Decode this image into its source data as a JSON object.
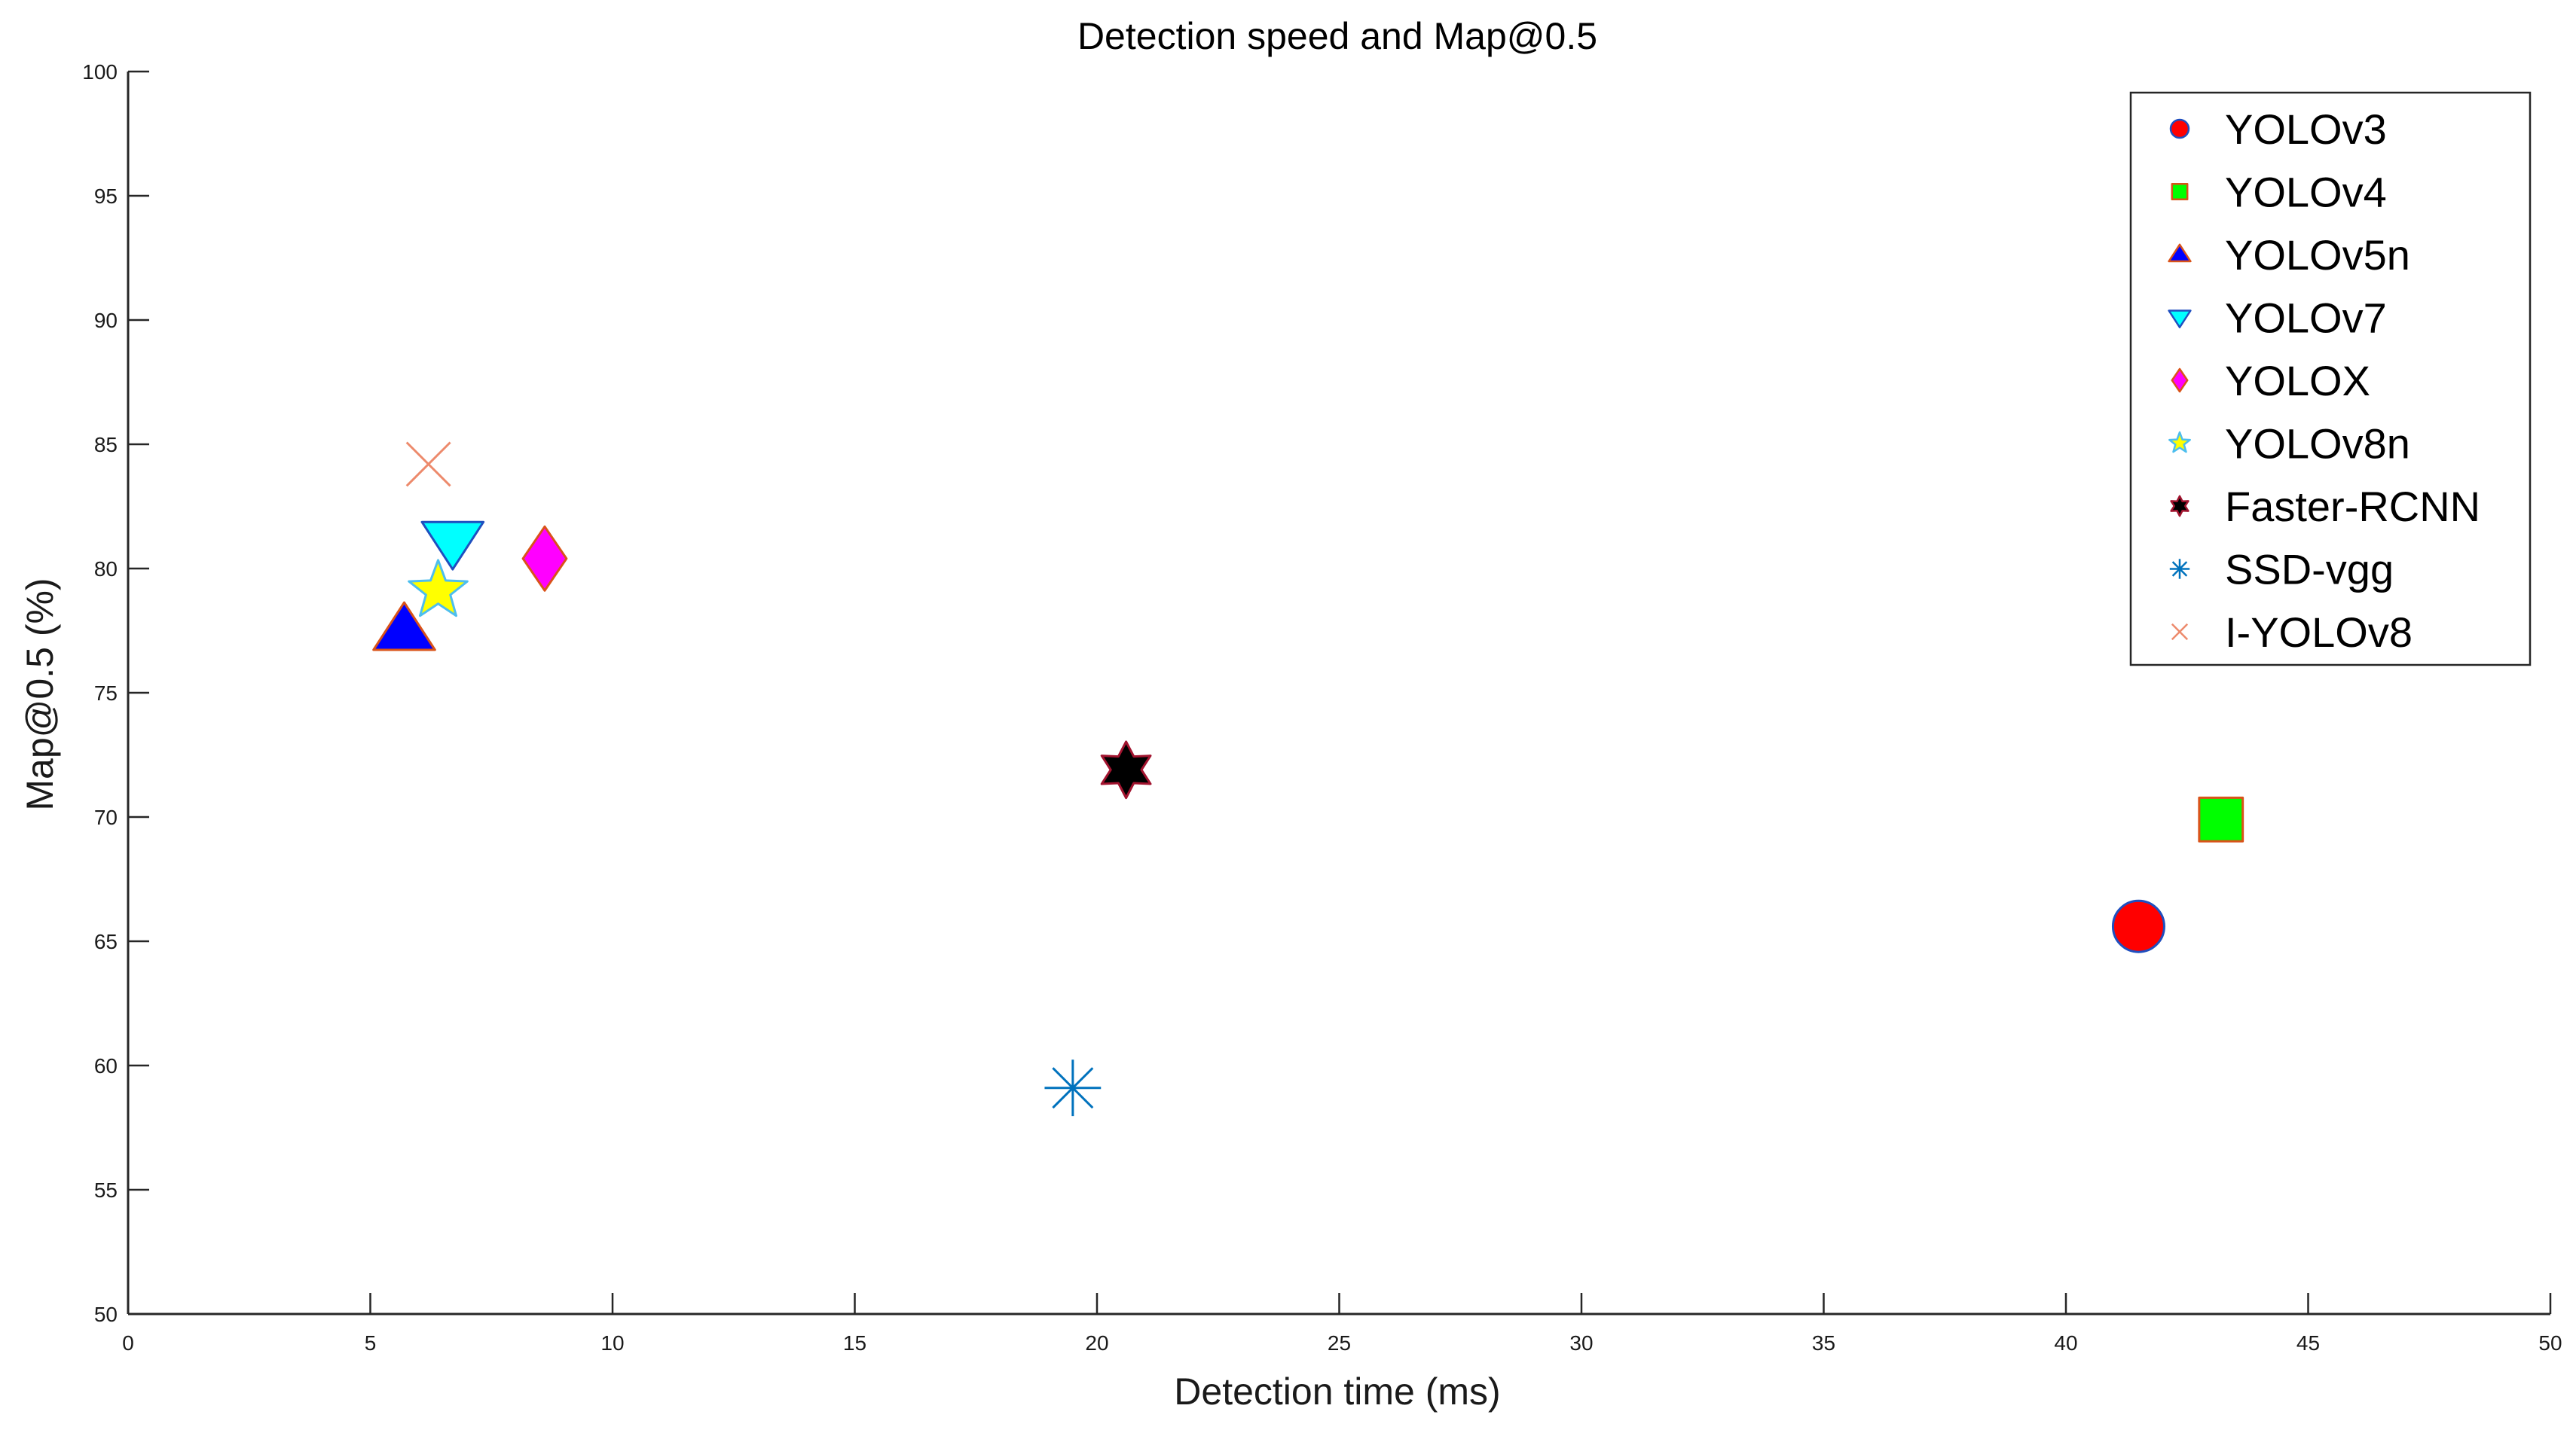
{
  "chart_data": {
    "type": "scatter",
    "title": "Detection speed and Map@0.5",
    "xlabel": "Detection time (ms)",
    "ylabel": "Map@0.5 (%)",
    "xlim": [
      0,
      50
    ],
    "ylim": [
      50,
      100
    ],
    "xticks": [
      "0",
      "5",
      "10",
      "15",
      "20",
      "25",
      "30",
      "35",
      "40",
      "45",
      "50"
    ],
    "yticks": [
      "50",
      "55",
      "60",
      "65",
      "70",
      "75",
      "80",
      "85",
      "90",
      "95",
      "100"
    ],
    "grid": false,
    "legend_position": "top-right",
    "series": [
      {
        "name": "YOLOv3",
        "x": 41.5,
        "y": 65.6,
        "marker": "circle",
        "fill": "#ff0000",
        "stroke": "#1f4fbf"
      },
      {
        "name": "YOLOv4",
        "x": 43.2,
        "y": 69.9,
        "marker": "square",
        "fill": "#00ff00",
        "stroke": "#d95319"
      },
      {
        "name": "YOLOv5n",
        "x": 5.7,
        "y": 77.5,
        "marker": "triangle-up",
        "fill": "#0000ff",
        "stroke": "#d95319"
      },
      {
        "name": "YOLOv7",
        "x": 6.7,
        "y": 81.1,
        "marker": "triangle-down",
        "fill": "#00ffff",
        "stroke": "#1f4fbf"
      },
      {
        "name": "YOLOX",
        "x": 8.6,
        "y": 80.4,
        "marker": "diamond",
        "fill": "#ff00ff",
        "stroke": "#d95319"
      },
      {
        "name": "YOLOv8n",
        "x": 6.4,
        "y": 79.1,
        "marker": "star",
        "fill": "#ffff00",
        "stroke": "#4dbeee"
      },
      {
        "name": "Faster-RCNN",
        "x": 20.6,
        "y": 71.9,
        "marker": "hexagram",
        "fill": "#000000",
        "stroke": "#a2142f"
      },
      {
        "name": "SSD-vgg",
        "x": 19.5,
        "y": 59.1,
        "marker": "asterisk",
        "fill": "none",
        "stroke": "#0072bd"
      },
      {
        "name": "I-YOLOv8",
        "x": 6.2,
        "y": 84.2,
        "marker": "x",
        "fill": "none",
        "stroke": "#ed8a6c"
      }
    ]
  }
}
